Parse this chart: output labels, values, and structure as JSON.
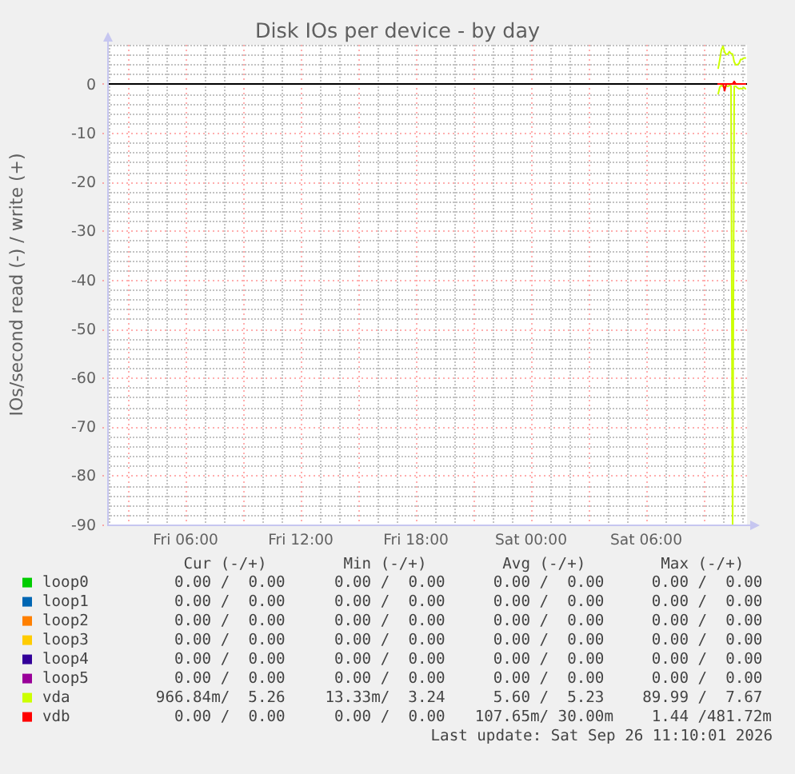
{
  "chart_data": {
    "type": "line",
    "title": "Disk IOs per device - by day",
    "ylabel": "IOs/second read (-) / write (+)",
    "xlim": [
      "2026-09-25T01:55",
      "2026-09-26T11:15"
    ],
    "xticks": [
      {
        "value": "2026-09-25T03:00",
        "label": null
      },
      {
        "value": "2026-09-25T06:00",
        "label": "Fri 06:00"
      },
      {
        "value": "2026-09-25T09:00",
        "label": null
      },
      {
        "value": "2026-09-25T12:00",
        "label": "Fri 12:00"
      },
      {
        "value": "2026-09-25T15:00",
        "label": null
      },
      {
        "value": "2026-09-25T18:00",
        "label": "Fri 18:00"
      },
      {
        "value": "2026-09-25T21:00",
        "label": null
      },
      {
        "value": "2026-09-26T00:00",
        "label": "Sat 00:00"
      },
      {
        "value": "2026-09-26T03:00",
        "label": null
      },
      {
        "value": "2026-09-26T06:00",
        "label": "Sat 06:00"
      },
      {
        "value": "2026-09-26T09:00",
        "label": null
      }
    ],
    "ylim": [
      -90,
      8
    ],
    "yticks": [
      -90,
      -80,
      -70,
      -60,
      -50,
      -40,
      -30,
      -20,
      -10,
      0
    ],
    "grid": true,
    "legend": "bottom",
    "ref_lines": [
      {
        "axis": "y",
        "value": 0,
        "color": "#000000"
      }
    ],
    "x": [
      "2026-09-26T09:45",
      "2026-09-26T09:50",
      "2026-09-26T09:55",
      "2026-09-26T10:00",
      "2026-09-26T10:05",
      "2026-09-26T10:10",
      "2026-09-26T10:15",
      "2026-09-26T10:20",
      "2026-09-26T10:25",
      "2026-09-26T10:30",
      "2026-09-26T10:35",
      "2026-09-26T10:40",
      "2026-09-26T10:45",
      "2026-09-26T10:50",
      "2026-09-26T10:55",
      "2026-09-26T11:00",
      "2026-09-26T11:05",
      "2026-09-26T11:10"
    ],
    "series": [
      {
        "name": "loop0",
        "color": "#00cc00",
        "values": [
          null,
          null,
          null,
          null,
          null,
          null,
          null,
          null,
          null,
          null,
          null,
          null,
          null,
          null,
          null,
          null,
          null,
          null
        ]
      },
      {
        "name": "loop1",
        "color": "#0066b3",
        "values": [
          null,
          null,
          null,
          null,
          null,
          null,
          null,
          null,
          null,
          null,
          null,
          null,
          null,
          null,
          null,
          null,
          null,
          null
        ]
      },
      {
        "name": "loop2",
        "color": "#ff8000",
        "values": [
          null,
          null,
          null,
          null,
          null,
          null,
          null,
          null,
          null,
          null,
          null,
          null,
          null,
          null,
          null,
          null,
          null,
          null
        ]
      },
      {
        "name": "loop3",
        "color": "#ffcc00",
        "values": [
          null,
          null,
          null,
          null,
          null,
          null,
          null,
          null,
          null,
          null,
          null,
          null,
          null,
          null,
          null,
          null,
          null,
          null
        ]
      },
      {
        "name": "loop4",
        "color": "#330099",
        "values": [
          null,
          null,
          null,
          null,
          null,
          null,
          null,
          null,
          null,
          null,
          null,
          null,
          null,
          null,
          null,
          null,
          null,
          null
        ]
      },
      {
        "name": "loop5",
        "color": "#990099",
        "values": [
          null,
          null,
          null,
          null,
          null,
          null,
          null,
          null,
          null,
          null,
          null,
          null,
          null,
          null,
          null,
          null,
          null,
          null
        ]
      },
      {
        "name": "vda",
        "color": "#ccff00",
        "values": [
          3.2,
          5.0,
          7.0,
          7.7,
          6.5,
          6.0,
          6.1,
          6.6,
          6.2,
          6.1,
          4.5,
          3.9,
          3.9,
          4.2,
          5.0,
          5.0,
          5.3,
          5.3
        ]
      },
      {
        "name": "vdb",
        "color": "#ff0000",
        "values": [
          0,
          0,
          0,
          0,
          0,
          0,
          0,
          0,
          0,
          0,
          0.5,
          0,
          0,
          0,
          0,
          0,
          0,
          0
        ]
      },
      {
        "color": "#ccff00",
        "values": [
          -2.0,
          -0.6,
          -0.3,
          -0.5,
          -0.8,
          -0.4,
          -0.5,
          -0.3,
          -0.4,
          -90,
          -0.5,
          -0.5,
          -0.8,
          -1.0,
          -0.9,
          -1.0,
          -0.7,
          -1.0
        ]
      },
      {
        "color": "#ff0000",
        "values": [
          0,
          0,
          0,
          0,
          -1.4,
          0,
          0,
          0,
          0,
          0,
          0,
          0,
          0,
          0,
          0,
          0,
          0,
          0
        ]
      }
    ],
    "annotations": [
      "Cur (-/+)",
      "Min (-/+)",
      "Avg (-/+)",
      "Max (-/+)",
      "0.00 /  0.00",
      "0.00 /  0.00",
      "0.00 /  0.00",
      "0.00 /  0.00",
      "0.00 /  0.00",
      "0.00 /  0.00",
      "0.00 /  0.00",
      "0.00 /  0.00",
      "0.00 /  0.00",
      "0.00 /  0.00",
      "0.00 /  0.00",
      "0.00 /  0.00",
      "0.00 /  0.00",
      "0.00 /  0.00",
      "0.00 /  0.00",
      "0.00 /  0.00",
      "0.00 /  0.00",
      "0.00 /  0.00",
      "0.00 /  0.00",
      "0.00 /  0.00",
      "0.00 /  0.00",
      "0.00 /  0.00",
      "0.00 /  0.00",
      "0.00 /  0.00",
      "966.84m/  5.26",
      "13.33m/  3.24",
      "5.60 /  5.23",
      "89.99 /  7.67",
      "0.00 /  0.00",
      "0.00 /  0.00",
      "107.65m/ 30.00m",
      "1.44 /481.72m",
      "Last update: Sat Sep 26 11:10:01 2026"
    ]
  }
}
